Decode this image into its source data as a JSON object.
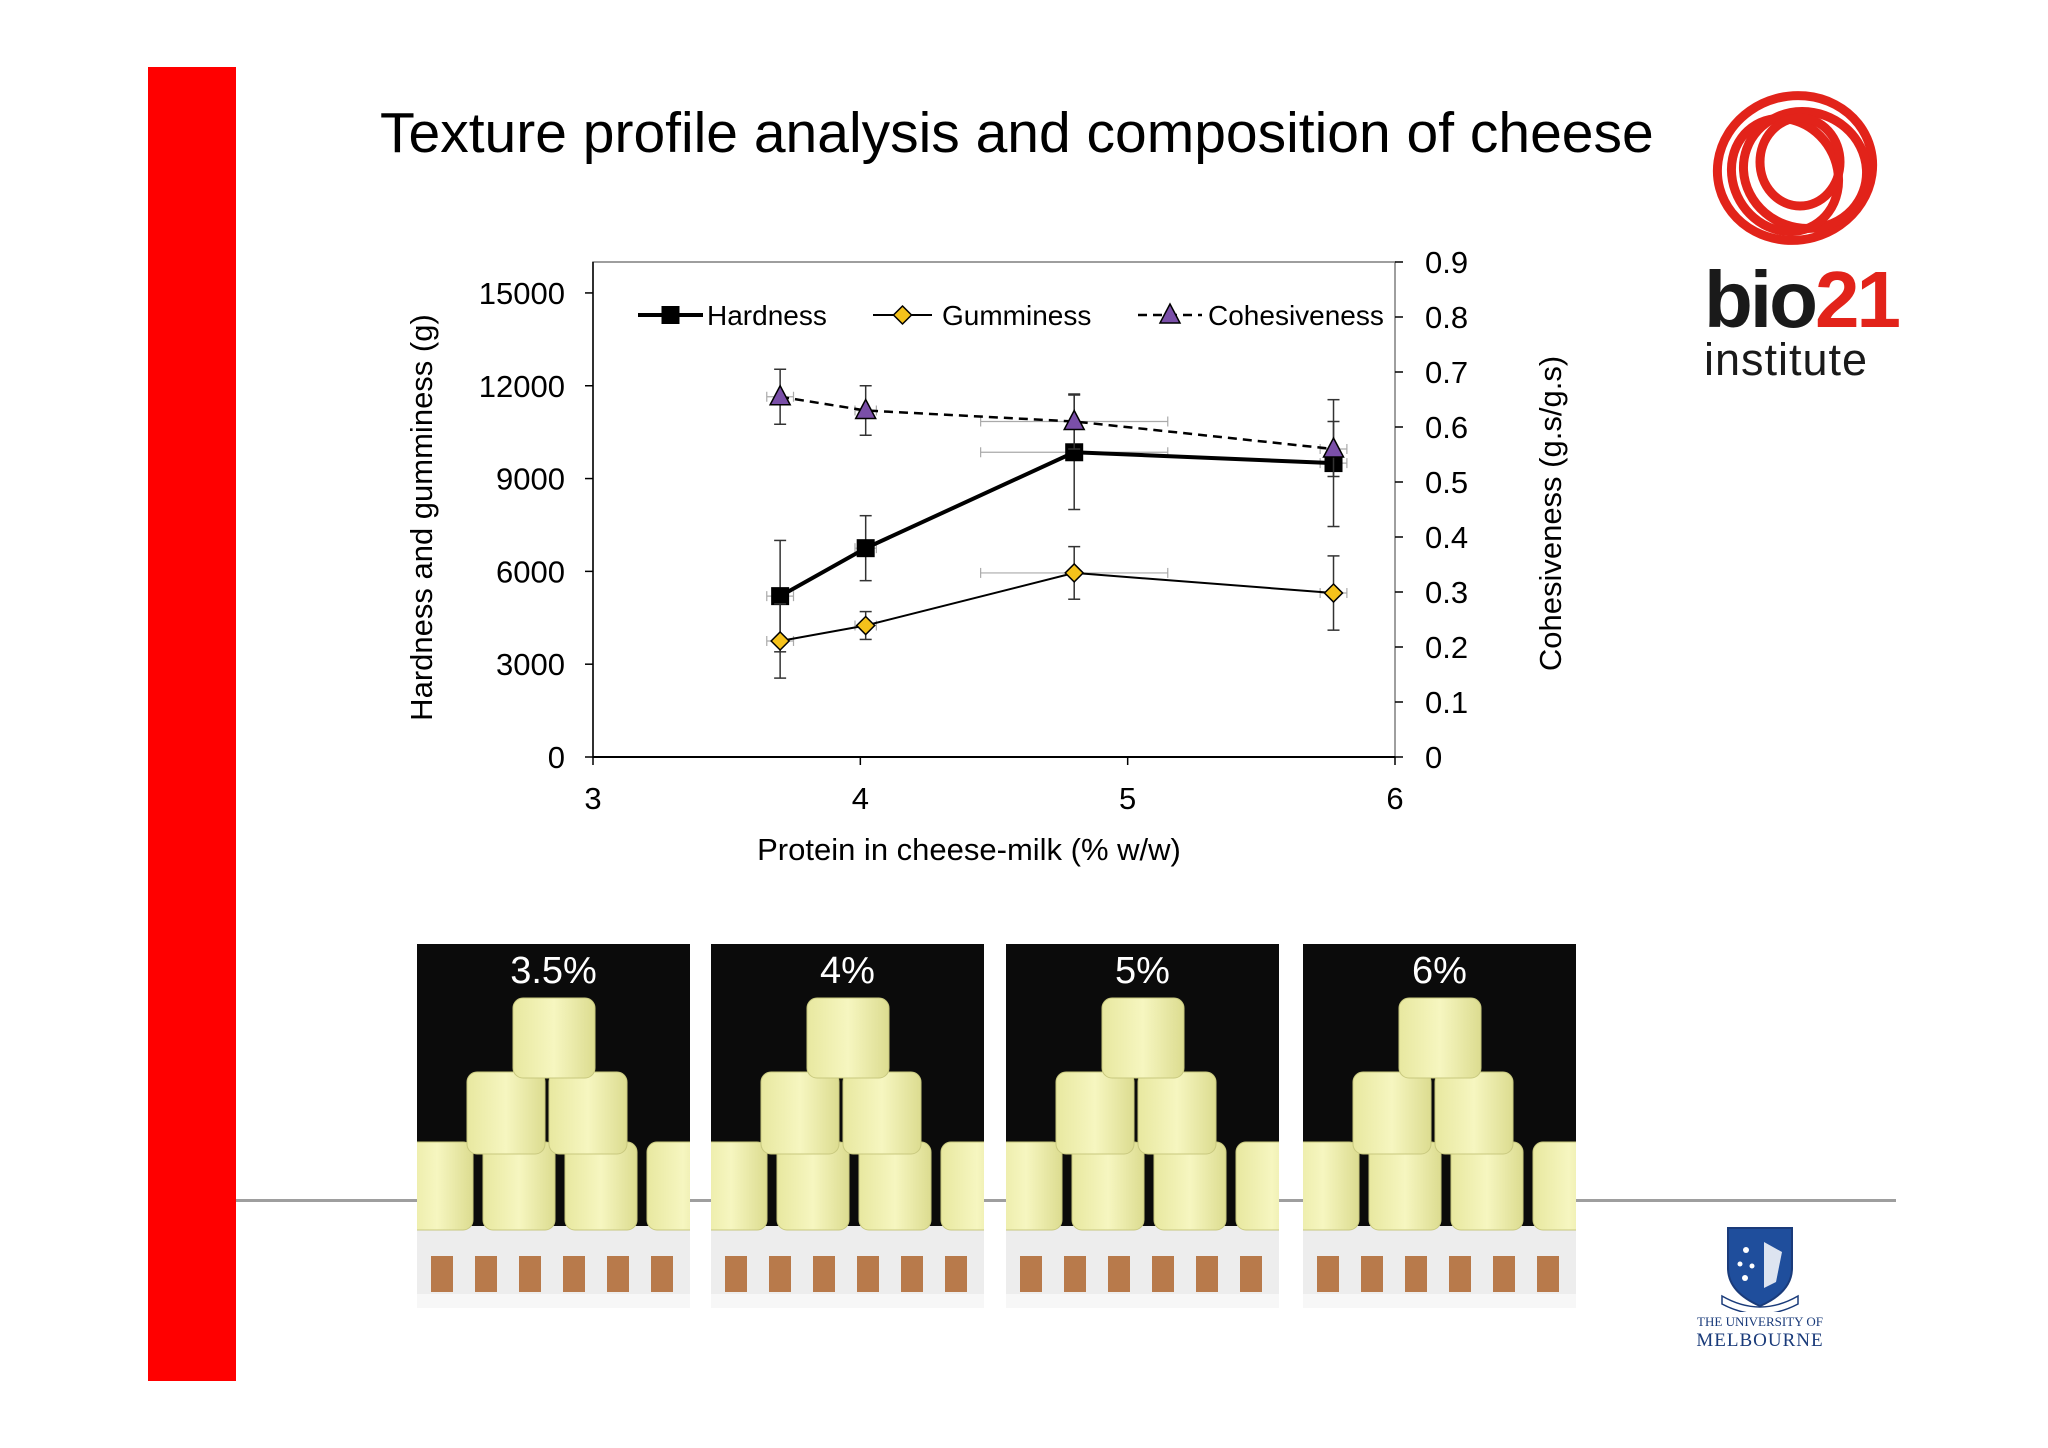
{
  "slide": {
    "title": "Texture profile analysis and composition of cheese"
  },
  "logo": {
    "bio_text": "bio",
    "bio_number": "21",
    "sub": "institute",
    "brand_color": "#e2231a"
  },
  "university": {
    "line1": "THE UNIVERSITY OF",
    "line2": "MELBOURNE"
  },
  "photos": [
    {
      "label": "3.5%"
    },
    {
      "label": "4%"
    },
    {
      "label": "5%"
    },
    {
      "label": "6%"
    }
  ],
  "chart_data": {
    "type": "line",
    "xlabel": "Protein in cheese-milk (% w/w)",
    "ylabel": "Hardness and gumminess (g)",
    "y2label": "Cohesiveness (g.s/g.s)",
    "xlim": [
      3,
      6
    ],
    "ylim": [
      0,
      16000
    ],
    "y2lim": [
      0,
      0.9
    ],
    "x_ticks": [
      "3",
      "4",
      "5",
      "6"
    ],
    "y_ticks": [
      "0",
      "3000",
      "6000",
      "9000",
      "12000",
      "15000"
    ],
    "y2_ticks": [
      "0",
      "0.1",
      "0.2",
      "0.3",
      "0.4",
      "0.5",
      "0.6",
      "0.7",
      "0.8",
      "0.9"
    ],
    "legend_position": "top",
    "grid": false,
    "series": [
      {
        "name": "Hardness",
        "axis": "left",
        "marker": "square",
        "line": "solid-thick",
        "color": "#000000",
        "x": [
          3.7,
          4.02,
          4.8,
          5.77
        ],
        "y": [
          5200,
          6750,
          9850,
          9500
        ],
        "yerr": [
          1800,
          1050,
          1850,
          2050
        ],
        "xerr": [
          0.05,
          0.04,
          0.35,
          0.05
        ]
      },
      {
        "name": "Gumminess",
        "axis": "left",
        "marker": "diamond",
        "line": "solid",
        "color": "#f5c21b",
        "x": [
          3.7,
          4.02,
          4.8,
          5.77
        ],
        "y": [
          3750,
          4250,
          5950,
          5300
        ],
        "yerr": [
          1200,
          450,
          850,
          1200
        ],
        "xerr": [
          0.05,
          0.04,
          0.35,
          0.05
        ]
      },
      {
        "name": "Cohesiveness",
        "axis": "right",
        "marker": "triangle",
        "line": "dashed",
        "color": "#7a4fa8",
        "x": [
          3.7,
          4.02,
          4.8,
          5.77
        ],
        "y": [
          0.655,
          0.63,
          0.61,
          0.56
        ],
        "yerr": [
          0.05,
          0.045,
          0.05,
          0.05
        ],
        "xerr": [
          0.05,
          0.04,
          0.35,
          0.05
        ]
      }
    ]
  }
}
